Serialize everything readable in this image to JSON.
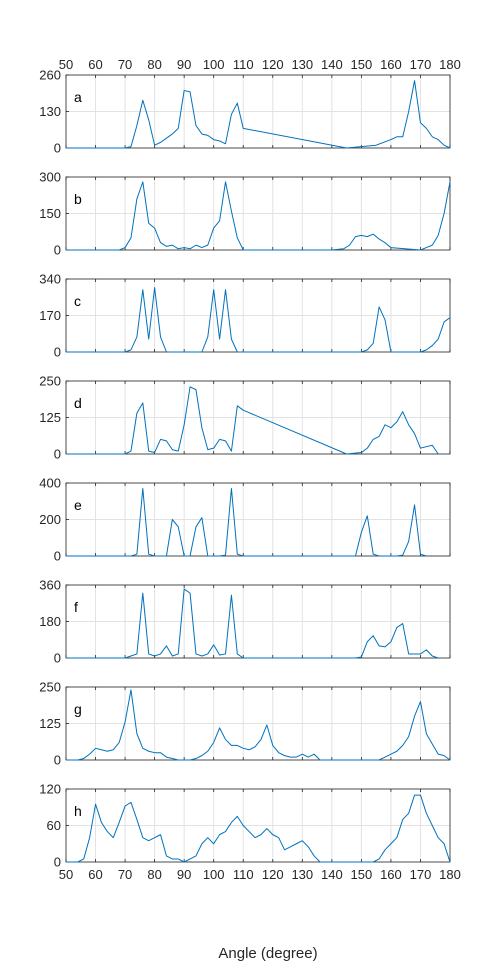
{
  "chart_data": {
    "type": "line",
    "layout": "stacked-panels",
    "xlabel": "Angle (degree)",
    "xlim": [
      50,
      180
    ],
    "xticks": [
      50,
      60,
      70,
      80,
      90,
      100,
      110,
      120,
      130,
      140,
      150,
      160,
      170,
      180
    ],
    "grid": true,
    "line_color": "#0072BD",
    "panels": [
      {
        "label": "a",
        "ylim": [
          0,
          260
        ],
        "yticks": [
          0,
          130,
          260
        ],
        "x": [
          50,
          70,
          72,
          74,
          76,
          78,
          80,
          82,
          84,
          86,
          88,
          90,
          92,
          94,
          96,
          98,
          100,
          102,
          104,
          106,
          108,
          110,
          145,
          150,
          155,
          160,
          162,
          164,
          166,
          168,
          170,
          172,
          174,
          176,
          178,
          180
        ],
        "y": [
          0,
          0,
          5,
          80,
          170,
          100,
          10,
          20,
          35,
          50,
          70,
          205,
          200,
          80,
          50,
          45,
          30,
          25,
          15,
          120,
          160,
          70,
          0,
          5,
          10,
          30,
          40,
          40,
          130,
          240,
          90,
          70,
          40,
          30,
          10,
          0
        ]
      },
      {
        "label": "b",
        "ylim": [
          0,
          300
        ],
        "yticks": [
          0,
          150,
          300
        ],
        "x": [
          50,
          68,
          70,
          72,
          74,
          76,
          78,
          80,
          82,
          84,
          86,
          88,
          90,
          92,
          94,
          96,
          98,
          100,
          102,
          104,
          106,
          108,
          110,
          140,
          144,
          146,
          148,
          150,
          152,
          154,
          156,
          158,
          160,
          170,
          172,
          174,
          176,
          178,
          180
        ],
        "y": [
          0,
          0,
          10,
          50,
          210,
          280,
          110,
          90,
          30,
          15,
          20,
          5,
          10,
          5,
          20,
          10,
          20,
          90,
          120,
          280,
          160,
          50,
          0,
          0,
          5,
          20,
          55,
          60,
          55,
          65,
          45,
          30,
          10,
          0,
          10,
          20,
          60,
          150,
          280
        ]
      },
      {
        "label": "c",
        "ylim": [
          0,
          340
        ],
        "yticks": [
          0,
          170,
          340
        ],
        "x": [
          50,
          70,
          72,
          74,
          76,
          78,
          80,
          82,
          84,
          96,
          98,
          100,
          102,
          104,
          106,
          108,
          150,
          152,
          154,
          156,
          158,
          160,
          170,
          172,
          174,
          176,
          178,
          180
        ],
        "y": [
          0,
          0,
          10,
          70,
          290,
          60,
          300,
          70,
          0,
          0,
          70,
          290,
          60,
          290,
          60,
          0,
          0,
          10,
          40,
          210,
          150,
          0,
          0,
          10,
          30,
          60,
          140,
          160
        ]
      },
      {
        "label": "d",
        "ylim": [
          0,
          250
        ],
        "yticks": [
          0,
          125,
          250
        ],
        "x": [
          50,
          70,
          72,
          74,
          76,
          78,
          80,
          82,
          84,
          86,
          88,
          90,
          92,
          94,
          96,
          98,
          100,
          102,
          104,
          106,
          108,
          110,
          145,
          150,
          152,
          154,
          156,
          158,
          160,
          162,
          164,
          166,
          168,
          170,
          172,
          174,
          176
        ],
        "y": [
          0,
          0,
          10,
          140,
          175,
          10,
          5,
          50,
          45,
          15,
          10,
          100,
          230,
          220,
          90,
          15,
          20,
          50,
          45,
          10,
          165,
          150,
          0,
          5,
          20,
          50,
          60,
          100,
          90,
          110,
          145,
          100,
          70,
          20,
          25,
          30,
          0
        ]
      },
      {
        "label": "e",
        "ylim": [
          0,
          400
        ],
        "yticks": [
          0,
          200,
          400
        ],
        "x": [
          50,
          72,
          74,
          76,
          78,
          80,
          84,
          86,
          88,
          90,
          92,
          94,
          96,
          98,
          100,
          102,
          104,
          106,
          108,
          110,
          148,
          150,
          152,
          154,
          156,
          162,
          164,
          166,
          168,
          170,
          172
        ],
        "y": [
          0,
          0,
          10,
          370,
          10,
          0,
          0,
          200,
          160,
          0,
          0,
          160,
          210,
          0,
          0,
          0,
          5,
          370,
          10,
          0,
          0,
          130,
          220,
          10,
          0,
          0,
          5,
          80,
          280,
          10,
          0
        ]
      },
      {
        "label": "f",
        "ylim": [
          0,
          360
        ],
        "yticks": [
          0,
          180,
          360
        ],
        "x": [
          50,
          70,
          72,
          74,
          76,
          78,
          80,
          82,
          84,
          86,
          88,
          90,
          92,
          94,
          96,
          98,
          100,
          102,
          104,
          106,
          108,
          110,
          148,
          150,
          152,
          154,
          156,
          158,
          160,
          162,
          164,
          166,
          168,
          170,
          172,
          174,
          176
        ],
        "y": [
          0,
          0,
          10,
          20,
          320,
          20,
          10,
          20,
          60,
          10,
          20,
          340,
          320,
          20,
          10,
          20,
          65,
          15,
          20,
          310,
          20,
          0,
          0,
          5,
          80,
          110,
          60,
          55,
          80,
          150,
          170,
          20,
          20,
          20,
          40,
          10,
          0
        ]
      },
      {
        "label": "g",
        "ylim": [
          0,
          250
        ],
        "yticks": [
          0,
          125,
          250
        ],
        "x": [
          50,
          54,
          56,
          58,
          60,
          62,
          64,
          66,
          68,
          70,
          72,
          74,
          76,
          78,
          80,
          82,
          84,
          86,
          88,
          90,
          92,
          94,
          96,
          98,
          100,
          102,
          104,
          106,
          108,
          110,
          112,
          114,
          116,
          118,
          120,
          122,
          124,
          126,
          128,
          130,
          132,
          134,
          136,
          150,
          156,
          158,
          160,
          162,
          164,
          166,
          168,
          170,
          172,
          174,
          176,
          178,
          180
        ],
        "y": [
          0,
          0,
          5,
          20,
          40,
          35,
          30,
          35,
          60,
          130,
          240,
          90,
          40,
          30,
          25,
          25,
          10,
          5,
          0,
          0,
          0,
          5,
          15,
          30,
          60,
          110,
          70,
          50,
          50,
          40,
          35,
          45,
          70,
          120,
          50,
          25,
          15,
          10,
          10,
          20,
          10,
          20,
          0,
          0,
          0,
          10,
          20,
          30,
          50,
          80,
          150,
          200,
          90,
          55,
          20,
          15,
          0
        ]
      },
      {
        "label": "h",
        "ylim": [
          0,
          120
        ],
        "yticks": [
          0,
          60,
          120
        ],
        "x": [
          50,
          54,
          56,
          58,
          60,
          62,
          64,
          66,
          68,
          70,
          72,
          74,
          76,
          78,
          80,
          82,
          84,
          86,
          88,
          90,
          92,
          94,
          96,
          98,
          100,
          102,
          104,
          106,
          108,
          110,
          112,
          114,
          116,
          118,
          120,
          122,
          124,
          126,
          128,
          130,
          132,
          134,
          136,
          150,
          154,
          156,
          158,
          160,
          162,
          164,
          166,
          168,
          170,
          172,
          174,
          176,
          178,
          180
        ],
        "y": [
          0,
          0,
          5,
          40,
          95,
          65,
          50,
          40,
          65,
          92,
          98,
          70,
          40,
          35,
          40,
          45,
          10,
          5,
          5,
          0,
          5,
          10,
          30,
          40,
          30,
          45,
          50,
          65,
          75,
          60,
          50,
          40,
          45,
          55,
          45,
          40,
          20,
          25,
          30,
          35,
          25,
          10,
          0,
          0,
          0,
          5,
          20,
          30,
          40,
          70,
          80,
          110,
          110,
          80,
          60,
          40,
          30,
          0
        ]
      }
    ]
  }
}
